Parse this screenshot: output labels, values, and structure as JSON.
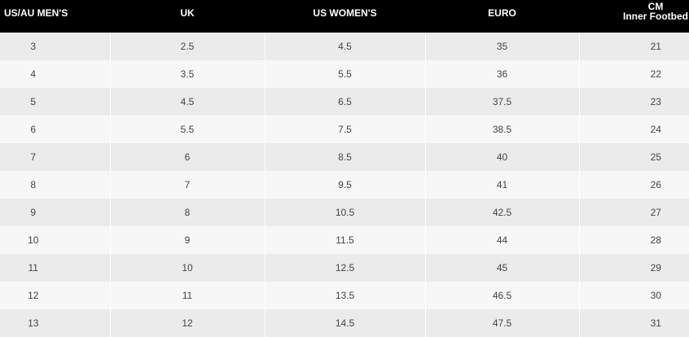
{
  "table": {
    "headers": [
      "US/AU MEN'S",
      "UK",
      "US WOMEN'S",
      "EURO",
      [
        "CM",
        "Inner Footbed"
      ]
    ],
    "rows": [
      [
        3,
        2.5,
        4.5,
        35,
        21
      ],
      [
        4,
        3.5,
        5.5,
        36,
        22
      ],
      [
        5,
        4.5,
        6.5,
        37.5,
        23
      ],
      [
        6,
        5.5,
        7.5,
        38.5,
        24
      ],
      [
        7,
        6,
        8.5,
        40,
        25
      ],
      [
        8,
        7,
        9.5,
        41,
        26
      ],
      [
        9,
        8,
        10.5,
        42.5,
        27
      ],
      [
        10,
        9,
        11.5,
        44,
        28
      ],
      [
        11,
        10,
        12.5,
        45,
        29
      ],
      [
        12,
        11,
        13.5,
        46.5,
        30
      ],
      [
        13,
        12,
        14.5,
        47.5,
        31
      ]
    ]
  }
}
